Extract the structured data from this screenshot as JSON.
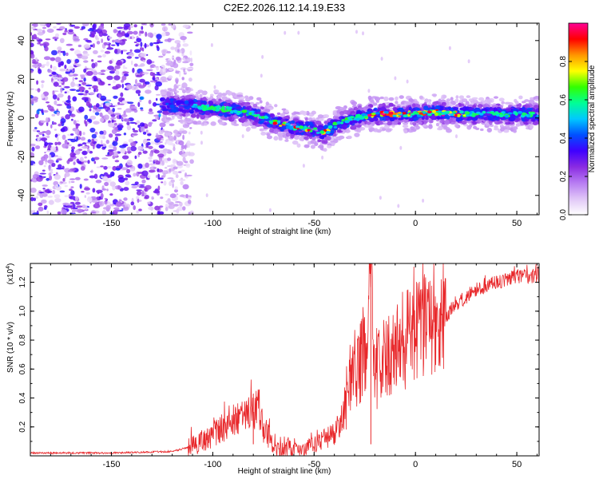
{
  "figure": {
    "title": "C2E2.2026.112.14.19.E33"
  },
  "colorbar": {
    "label": "Normalized spectral amplitude",
    "ticks": [
      "0.0",
      "0.2",
      "0.4",
      "0.6",
      "0.8"
    ],
    "tick_values": [
      0.0,
      0.2,
      0.4,
      0.6,
      0.8
    ],
    "range": [
      0,
      1
    ],
    "colormap": [
      "#ffffff",
      "#e0c6f7",
      "#b77cf2",
      "#8a2be2",
      "#3f00ff",
      "#0050ff",
      "#00c8ff",
      "#00ff96",
      "#32ff00",
      "#ffff00",
      "#ff9600",
      "#ff0000",
      "#ff0096"
    ]
  },
  "chart_data": [
    {
      "type": "heatmap",
      "title": "C2E2.2026.112.14.19.E33",
      "xlabel": "Height of straight line (km)",
      "ylabel": "Frequency (Hz)",
      "xlim": [
        -190,
        61
      ],
      "ylim": [
        -50,
        49
      ],
      "xticks": [
        -150,
        -100,
        -50,
        0,
        50
      ],
      "xtick_labels": [
        "-150",
        "-100",
        "-50",
        "0",
        "50"
      ],
      "yticks": [
        -40,
        -20,
        0,
        20,
        40
      ],
      "ytick_labels": [
        "-40",
        "-20",
        "0",
        "20",
        "40"
      ],
      "ridge": {
        "x": [
          -125,
          -110,
          -100,
          -90,
          -80,
          -70,
          -60,
          -50,
          -45,
          -40,
          -35,
          -30,
          -25,
          -20,
          -10,
          0,
          10,
          20,
          30,
          40,
          50,
          61
        ],
        "y": [
          7,
          6,
          5,
          4,
          2,
          -2,
          -5,
          -6,
          -8,
          -4,
          -2,
          0,
          1,
          2,
          2,
          2,
          3,
          2,
          2,
          2,
          2,
          2
        ]
      },
      "noise_region_x": [
        -190,
        -115
      ]
    },
    {
      "type": "line",
      "title": "",
      "xlabel": "Height of straight line (km)",
      "ylabel": "SNR (10 * v/v)",
      "scale_label": "(x10",
      "scale_exponent": "4",
      "scale_close": ")",
      "xlim": [
        -190,
        61
      ],
      "ylim": [
        0,
        1.33
      ],
      "xticks": [
        -150,
        -100,
        -50,
        0,
        50
      ],
      "xtick_labels": [
        "-150",
        "-100",
        "-50",
        "0",
        "50"
      ],
      "yticks": [
        0.2,
        0.4,
        0.6,
        0.8,
        1.0,
        1.2
      ],
      "ytick_labels": [
        "0.2",
        "0.4",
        "0.6",
        "0.8",
        "1.0",
        "1.2"
      ],
      "series": [
        {
          "name": "SNR",
          "color": "#e8272a",
          "x": [
            -190,
            -150,
            -120,
            -112,
            -105,
            -100,
            -95,
            -90,
            -85,
            -80,
            -78,
            -75,
            -70,
            -65,
            -60,
            -55,
            -50,
            -45,
            -40,
            -38,
            -35,
            -33,
            -30,
            -25,
            -22,
            -20,
            -15,
            -10,
            -5,
            0,
            5,
            10,
            15,
            20,
            30,
            40,
            50,
            61
          ],
          "y": [
            0.02,
            0.02,
            0.03,
            0.06,
            0.1,
            0.15,
            0.2,
            0.25,
            0.26,
            0.3,
            0.38,
            0.2,
            0.08,
            0.05,
            0.04,
            0.05,
            0.08,
            0.12,
            0.16,
            0.2,
            0.3,
            0.55,
            0.6,
            0.7,
            1.3,
            0.6,
            0.65,
            0.72,
            0.8,
            0.85,
            0.9,
            0.85,
            0.95,
            1.05,
            1.15,
            1.2,
            1.24,
            1.24
          ]
        }
      ],
      "labeled_peaks": [
        {
          "x": -80,
          "y": 0.43
        },
        {
          "x": -22,
          "y": 1.32
        }
      ]
    }
  ]
}
